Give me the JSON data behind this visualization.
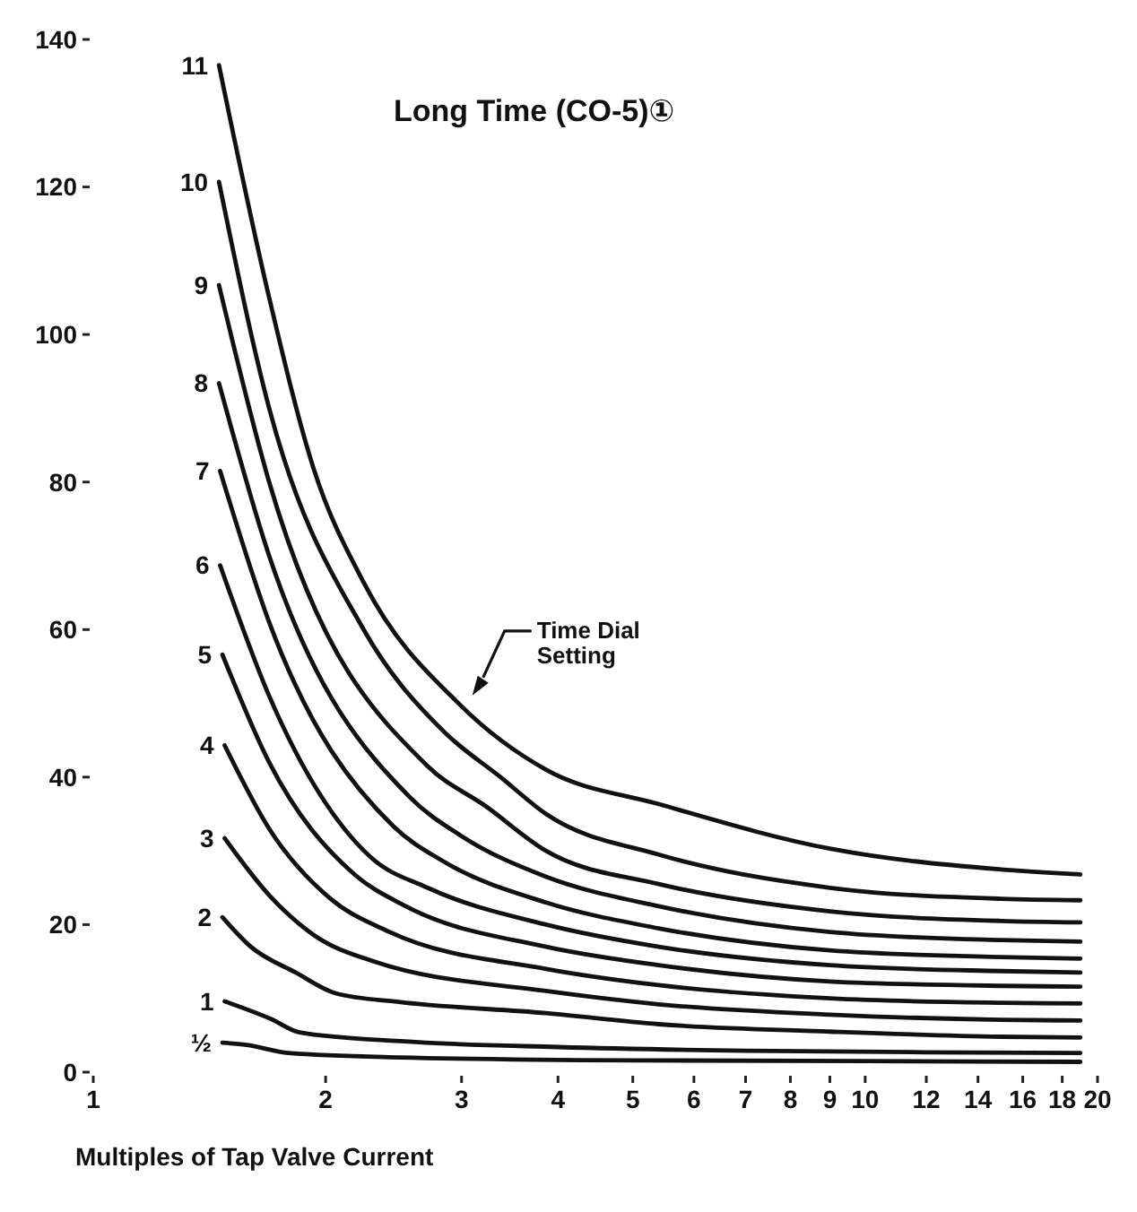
{
  "chart_data": {
    "type": "line",
    "title": "Long Time (CO-5)①",
    "xlabel": "Multiples of Tap Valve Current",
    "log": "x",
    "xlim": [
      1,
      20
    ],
    "xticks": [
      1,
      2,
      3,
      4,
      5,
      6,
      7,
      8,
      9,
      10,
      12,
      14,
      16,
      18,
      20
    ],
    "ylim": [
      0,
      140
    ],
    "yticks": [
      0,
      20,
      40,
      60,
      80,
      100,
      120,
      140
    ],
    "grid": false,
    "annotations": [
      "Time Dial Setting"
    ],
    "series": [
      {
        "name": "½",
        "color": "#111111",
        "x": [
          1.47,
          1.58,
          1.79,
          2.5,
          5,
          10,
          19
        ],
        "values": [
          4.0,
          3.7,
          2.6,
          2.0,
          1.6,
          1.5,
          1.4
        ]
      },
      {
        "name": "1",
        "color": "#111111",
        "x": [
          1.48,
          1.7,
          1.85,
          2.5,
          4,
          7,
          12,
          19
        ],
        "values": [
          9.6,
          7.2,
          5.4,
          4.2,
          3.4,
          2.9,
          2.7,
          2.6
        ]
      },
      {
        "name": "2",
        "color": "#111111",
        "x": [
          1.47,
          1.6,
          1.83,
          2.06,
          2.5,
          3.86,
          5.4,
          9,
          15,
          19
        ],
        "values": [
          21,
          17,
          13.5,
          10.7,
          9.5,
          8,
          6.5,
          5.5,
          4.8,
          4.7
        ]
      },
      {
        "name": "3",
        "color": "#111111",
        "x": [
          1.48,
          1.69,
          1.93,
          2.31,
          3.86,
          5.4,
          9,
          15,
          19
        ],
        "values": [
          31.7,
          24,
          18.6,
          15,
          11,
          9.2,
          7.8,
          7.1,
          7.0
        ]
      },
      {
        "name": "4",
        "color": "#111111",
        "x": [
          1.48,
          1.69,
          2.03,
          2.42,
          3.86,
          5.4,
          9,
          15,
          19
        ],
        "values": [
          44.3,
          33,
          23.5,
          19,
          14,
          11.8,
          10,
          9.4,
          9.3
        ]
      },
      {
        "name": "5",
        "color": "#111111",
        "x": [
          1.47,
          1.69,
          2.18,
          2.54,
          3.86,
          5.4,
          9,
          15,
          19
        ],
        "values": [
          56.6,
          42,
          26.8,
          22.5,
          17,
          14.5,
          12.3,
          11.7,
          11.6
        ]
      },
      {
        "name": "6",
        "color": "#111111",
        "x": [
          1.46,
          1.69,
          2.29,
          2.71,
          3.86,
          5.4,
          9,
          15,
          19
        ],
        "values": [
          68.7,
          51,
          29.1,
          25,
          20,
          17,
          14.5,
          13.7,
          13.5
        ]
      },
      {
        "name": "7",
        "color": "#111111",
        "x": [
          1.46,
          1.69,
          2.45,
          2.85,
          3.86,
          5.4,
          9,
          15,
          19
        ],
        "values": [
          81.5,
          61,
          33.3,
          28.5,
          23,
          19.5,
          16.5,
          15.6,
          15.4
        ]
      },
      {
        "name": "8",
        "color": "#111111",
        "x": [
          1.455,
          1.69,
          2.57,
          3.0,
          3.86,
          5.4,
          9,
          15,
          19
        ],
        "values": [
          93.4,
          70,
          37.3,
          32,
          26.5,
          22.5,
          19,
          17.9,
          17.7
        ]
      },
      {
        "name": "9",
        "color": "#111111",
        "x": [
          1.455,
          1.69,
          2.71,
          3.23,
          3.86,
          5.4,
          9,
          15,
          19
        ],
        "values": [
          106.7,
          80,
          41.5,
          36,
          30,
          25.5,
          21.8,
          20.5,
          20.3
        ]
      },
      {
        "name": "10",
        "color": "#111111",
        "x": [
          1.455,
          1.69,
          2.24,
          2.85,
          3.37,
          3.86,
          5.4,
          9,
          15,
          19
        ],
        "values": [
          120.7,
          90,
          60,
          46.1,
          40,
          35,
          29.5,
          25,
          23.5,
          23.3
        ]
      },
      {
        "name": "11",
        "color": "#111111",
        "x": [
          1.455,
          1.69,
          1.93,
          2.24,
          3.0,
          3.86,
          5.42,
          9,
          14.9,
          19
        ],
        "values": [
          136.5,
          105,
          81.8,
          66.4,
          49.6,
          41,
          36.3,
          30.3,
          27.5,
          26.8
        ]
      }
    ]
  }
}
